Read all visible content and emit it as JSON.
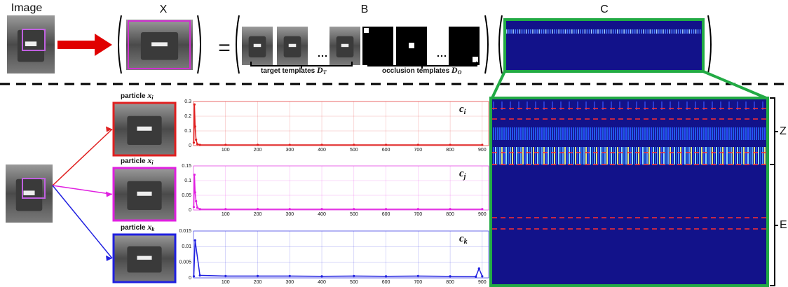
{
  "top": {
    "image_label": "Image",
    "x_label": "X",
    "b_label": "B",
    "c_label": "C",
    "equals": "=",
    "target_label": "target templates",
    "target_symbol": "D",
    "target_sub": "T",
    "occlusion_label": "occlusion templates",
    "occlusion_symbol": "D",
    "occlusion_sub": "O"
  },
  "heatmap": {
    "z_label": "Z",
    "e_label": "E"
  },
  "particles": [
    {
      "label": "particle",
      "symbol": "x",
      "sub": "i",
      "coef_symbol": "c",
      "coef_sub": "i"
    },
    {
      "label": "particle",
      "symbol": "x",
      "sub": "i",
      "coef_symbol": "c",
      "coef_sub": "j"
    },
    {
      "label": "particle",
      "symbol": "x",
      "sub": "k",
      "coef_symbol": "c",
      "coef_sub": "k"
    }
  ],
  "chart_data": [
    {
      "type": "line",
      "color": "#e02020",
      "xlim": [
        0,
        920
      ],
      "xticks": [
        100,
        200,
        300,
        400,
        500,
        600,
        700,
        800,
        900
      ],
      "ylim": [
        0,
        0.3
      ],
      "yticks": [
        0,
        0.1,
        0.2,
        0.3
      ],
      "x": [
        1,
        3,
        5,
        8,
        12,
        20,
        100,
        200,
        300,
        400,
        500,
        600,
        700,
        800,
        900
      ],
      "values": [
        0.02,
        0.28,
        0.13,
        0.04,
        0.01,
        0.005,
        0.005,
        0.005,
        0.005,
        0.005,
        0.005,
        0.005,
        0.005,
        0.005,
        0.005
      ]
    },
    {
      "type": "line",
      "color": "#e020e0",
      "xlim": [
        0,
        920
      ],
      "xticks": [
        100,
        200,
        300,
        400,
        500,
        600,
        700,
        800,
        900
      ],
      "ylim": [
        0,
        0.15
      ],
      "yticks": [
        0,
        0.05,
        0.1,
        0.15
      ],
      "x": [
        1,
        3,
        5,
        8,
        12,
        20,
        100,
        200,
        300,
        400,
        500,
        600,
        700,
        800,
        900
      ],
      "values": [
        0.01,
        0.12,
        0.06,
        0.03,
        0.008,
        0.003,
        0.003,
        0.003,
        0.003,
        0.003,
        0.003,
        0.003,
        0.003,
        0.003,
        0.003
      ]
    },
    {
      "type": "line",
      "color": "#2020e0",
      "xlim": [
        0,
        920
      ],
      "xticks": [
        100,
        200,
        300,
        400,
        500,
        600,
        700,
        800,
        900
      ],
      "ylim": [
        0,
        0.015
      ],
      "yticks": [
        0,
        0.005,
        0.01,
        0.015
      ],
      "x": [
        1,
        5,
        20,
        100,
        200,
        300,
        400,
        500,
        600,
        700,
        800,
        880,
        890,
        900
      ],
      "values": [
        0.0005,
        0.012,
        0.0008,
        0.0006,
        0.0006,
        0.0006,
        0.0005,
        0.0006,
        0.0005,
        0.0006,
        0.0005,
        0.0004,
        0.003,
        0.0005
      ]
    }
  ]
}
